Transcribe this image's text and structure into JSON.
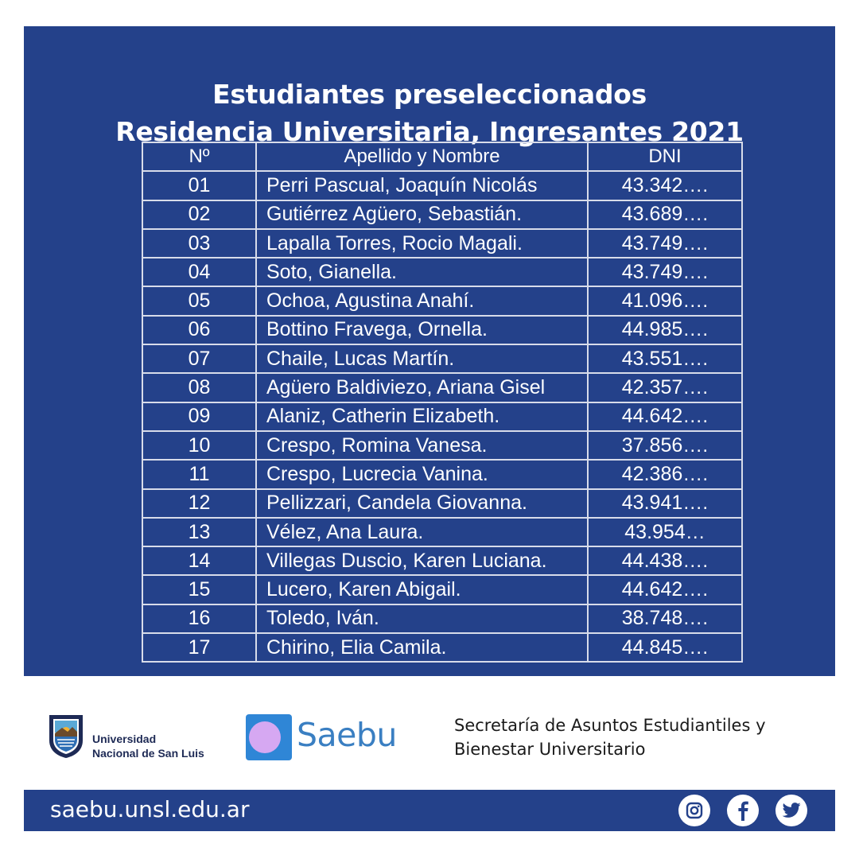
{
  "title": {
    "line1": "Estudiantes preseleccionados",
    "line2": "Residencia Universitaria, Ingresantes 2021"
  },
  "table": {
    "headers": [
      "Nº",
      "Apellido y Nombre",
      "DNI"
    ],
    "rows": [
      [
        "01",
        "Perri Pascual, Joaquín Nicolás",
        "43.342…."
      ],
      [
        "02",
        "Gutiérrez Agüero, Sebastián.",
        "43.689…."
      ],
      [
        "03",
        "Lapalla Torres, Rocio Magali.",
        "43.749…."
      ],
      [
        "04",
        "Soto, Gianella.",
        "43.749…."
      ],
      [
        "05",
        "Ochoa, Agustina Anahí.",
        "41.096…."
      ],
      [
        "06",
        "Bottino Fravega, Ornella.",
        "44.985…."
      ],
      [
        "07",
        "Chaile, Lucas Martín.",
        "43.551…."
      ],
      [
        "08",
        "Agüero Baldiviezo, Ariana Gisel",
        "42.357…."
      ],
      [
        "09",
        "Alaniz, Catherin Elizabeth.",
        "44.642…."
      ],
      [
        "10",
        "Crespo, Romina Vanesa.",
        "37.856…."
      ],
      [
        "11",
        "Crespo, Lucrecia Vanina.",
        "42.386…."
      ],
      [
        "12",
        "Pellizzari, Candela Giovanna.",
        "43.941…."
      ],
      [
        "13",
        "Vélez, Ana Laura.",
        "43.954…"
      ],
      [
        "14",
        "Villegas Duscio, Karen Luciana.",
        "44.438…."
      ],
      [
        "15",
        "Lucero, Karen Abigail.",
        "44.642…."
      ],
      [
        "16",
        "Toledo, Iván.",
        "38.748…."
      ],
      [
        "17",
        "Chirino, Elia Camila.",
        "44.845…."
      ]
    ]
  },
  "university": {
    "line1": "Universidad",
    "line2": "Nacional de San Luis"
  },
  "saebu": {
    "name": "Saebu"
  },
  "secretaria": {
    "line1": "Secretaría de Asuntos Estudiantiles y",
    "line2": "Bienestar Universitario"
  },
  "footer": {
    "website": "saebu.unsl.edu.ar"
  },
  "social": [
    "instagram-icon",
    "facebook-icon",
    "twitter-icon"
  ],
  "colors": {
    "panel": "#24418a",
    "saebu_text": "#3a7fc2",
    "saebu_circle": "#d6a8f2",
    "saebu_square": "#2f86d6"
  }
}
